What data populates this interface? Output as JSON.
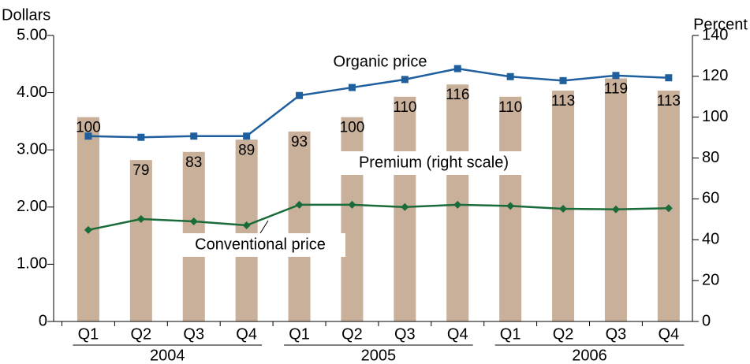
{
  "chart_data": {
    "type": "bar_line",
    "ylabel": "Dollars",
    "y2label": "Percent",
    "categories": [
      "Q1",
      "Q2",
      "Q3",
      "Q4",
      "Q1",
      "Q2",
      "Q3",
      "Q4",
      "Q1",
      "Q2",
      "Q3",
      "Q4"
    ],
    "groups": [
      "2004",
      "2005",
      "2006"
    ],
    "ylim": [
      0,
      5
    ],
    "yticks": [
      0,
      {
        "value": 1,
        "label": "1.00"
      },
      {
        "value": 2,
        "label": "2.00"
      },
      {
        "value": 3,
        "label": "3.00"
      },
      {
        "value": 4,
        "label": "4.00"
      },
      {
        "value": 5,
        "label": "5.00"
      }
    ],
    "y2lim": [
      0,
      140
    ],
    "y2ticks": [
      0,
      20,
      40,
      60,
      80,
      100,
      120,
      140
    ],
    "series": [
      {
        "name": "Premium (right scale)",
        "type": "bar",
        "axis": "y2",
        "color": "#c8b09a",
        "values": [
          100,
          79,
          83,
          89,
          93,
          100,
          110,
          116,
          110,
          113,
          119,
          113
        ]
      },
      {
        "name": "Organic price",
        "type": "line",
        "axis": "y",
        "color": "#1f5f9e",
        "values": [
          3.24,
          3.22,
          3.24,
          3.24,
          3.95,
          4.09,
          4.23,
          4.42,
          4.28,
          4.21,
          4.3,
          4.26
        ]
      },
      {
        "name": "Conventional price",
        "type": "line",
        "axis": "y",
        "color": "#1a6b3a",
        "values": [
          1.6,
          1.79,
          1.75,
          1.68,
          2.04,
          2.04,
          2.0,
          2.04,
          2.02,
          1.97,
          1.96,
          1.98
        ]
      }
    ]
  }
}
